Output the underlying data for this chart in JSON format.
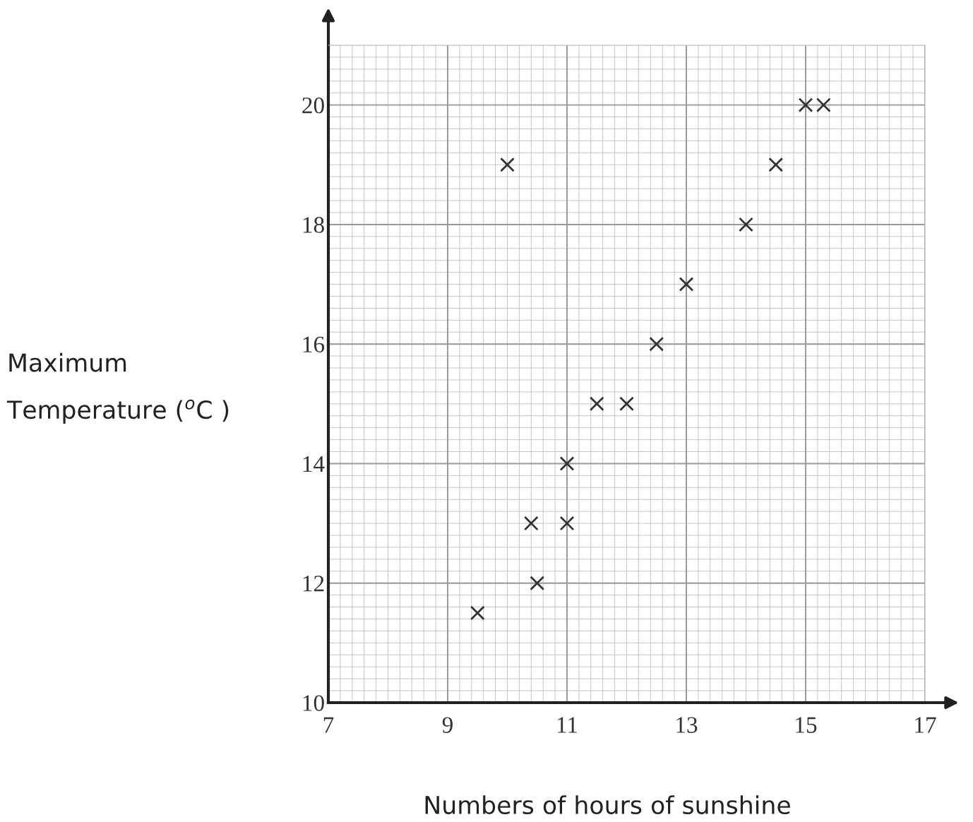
{
  "chart_data": {
    "type": "scatter",
    "xlabel": "Numbers of hours of sunshine",
    "ylabel": "Maximum\nTemperature ($^{o}$C )",
    "x": [
      9.5,
      10,
      10.4,
      10.5,
      11,
      11,
      11.5,
      12,
      12.5,
      13,
      14,
      14.5,
      15,
      15.3
    ],
    "values": [
      11.5,
      19,
      13,
      12,
      13,
      14,
      15,
      15,
      16,
      17,
      18,
      19,
      20,
      20
    ],
    "color": "#333333",
    "marker": "cross",
    "xlim": [
      7,
      17
    ],
    "ylim": [
      10,
      21
    ],
    "xticks": [
      7,
      9,
      11,
      13,
      15,
      17
    ],
    "yticks": [
      10,
      12,
      14,
      16,
      18,
      20
    ],
    "grid": true
  }
}
